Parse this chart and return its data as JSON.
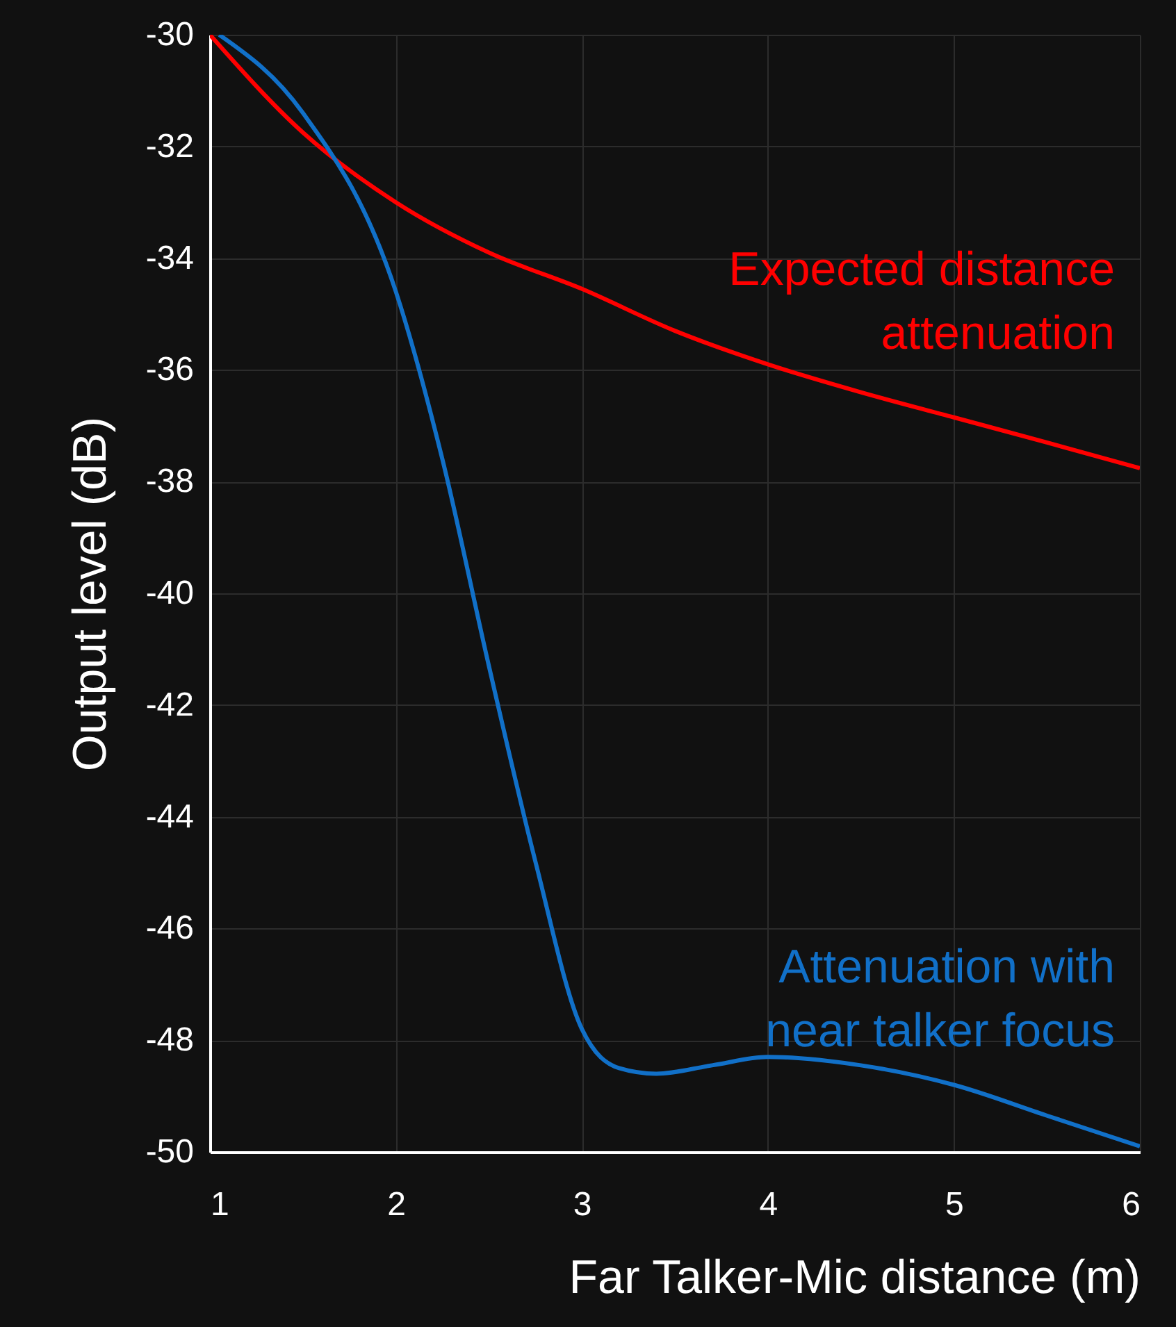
{
  "chart_data": {
    "type": "line",
    "xlabel": "Far Talker-Mic distance (m)",
    "ylabel": "Output level (dB)",
    "xlim": [
      1,
      6
    ],
    "xticks": [
      1,
      2,
      3,
      4,
      5,
      6
    ],
    "ylim": [
      -50,
      -30
    ],
    "yticks": [
      -50,
      -48,
      -46,
      -44,
      -42,
      -40,
      -38,
      -36,
      -34,
      -32,
      -30
    ],
    "grid": true,
    "legend": false,
    "line_style": "solid",
    "marker": "none",
    "series": [
      {
        "name": "Expected distance attenuation",
        "color": "#ff0000",
        "x": [
          1,
          1.5,
          2,
          2.5,
          3,
          3.5,
          4,
          4.5,
          5,
          5.5,
          6
        ],
        "values": [
          -30,
          -31.75,
          -33,
          -33.9,
          -34.55,
          -35.3,
          -35.9,
          -36.4,
          -36.85,
          -37.3,
          -37.76
        ]
      },
      {
        "name": "Attenuation with near talker focus",
        "color": "#1170c8",
        "x": [
          1.05,
          1.5,
          2,
          2.25,
          2.5,
          2.75,
          3,
          3.2,
          3.4,
          3.7,
          4,
          4.5,
          5,
          5.5,
          6
        ],
        "values": [
          -30,
          -31.4,
          -34.6,
          -37.6,
          -41.3,
          -44.8,
          -47.8,
          -48.5,
          -48.6,
          -48.45,
          -48.3,
          -48.45,
          -48.8,
          -49.35,
          -49.9
        ]
      }
    ]
  }
}
